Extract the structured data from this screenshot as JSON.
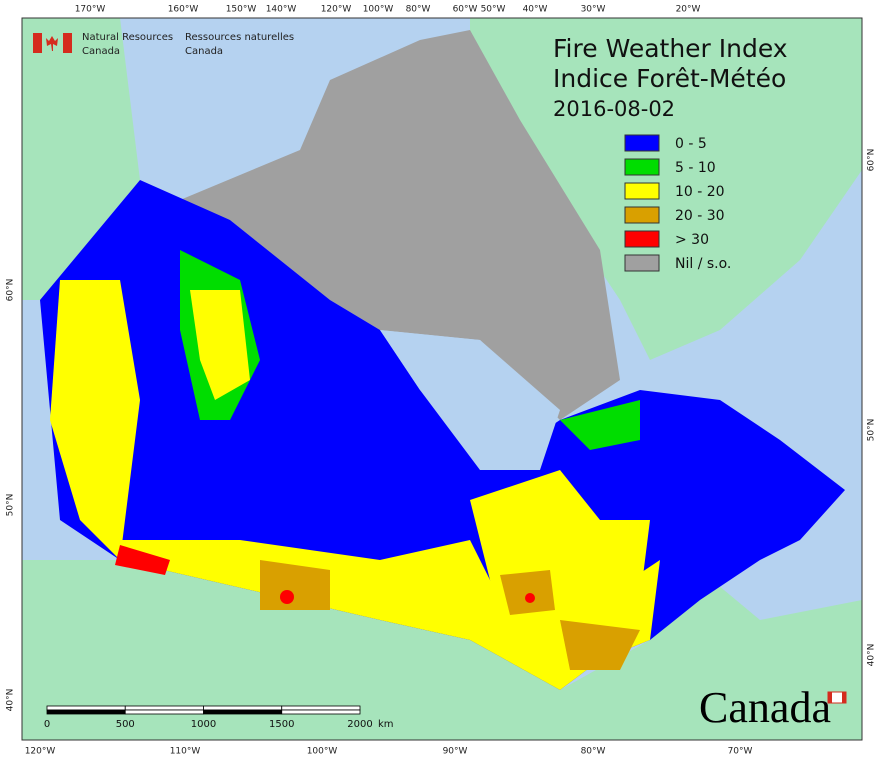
{
  "header": {
    "logo_en": [
      "Natural Resources",
      "Canada"
    ],
    "logo_fr": [
      "Ressources naturelles",
      "Canada"
    ],
    "title": "Fire Weather Index",
    "title_fr": "Indice Forêt-Météo",
    "date": "2016-08-02"
  },
  "legend": [
    {
      "label": "0 - 5",
      "color": "#0000ff"
    },
    {
      "label": "5 - 10",
      "color": "#00dd00"
    },
    {
      "label": "10 - 20",
      "color": "#ffff00"
    },
    {
      "label": "20 - 30",
      "color": "#d9a000"
    },
    {
      "label": "> 30",
      "color": "#ff0000"
    },
    {
      "label": "Nil / s.o.",
      "color": "#a0a0a0"
    }
  ],
  "graticule": {
    "top": [
      "170°W",
      "160°W",
      "150°W",
      "140°W",
      "120°W",
      "100°W",
      "80°W",
      "60°W",
      "50°W",
      "40°W",
      "30°W",
      "20°W"
    ],
    "bottom": [
      "120°W",
      "110°W",
      "100°W",
      "90°W",
      "80°W",
      "70°W"
    ],
    "left": [
      "60°N",
      "50°N",
      "40°N"
    ],
    "right": [
      "60°N",
      "50°N",
      "40°N"
    ]
  },
  "scale_bar": {
    "ticks": [
      0,
      500,
      1000,
      1500,
      2000
    ],
    "unit": "km"
  },
  "wordmark": "Canada"
}
